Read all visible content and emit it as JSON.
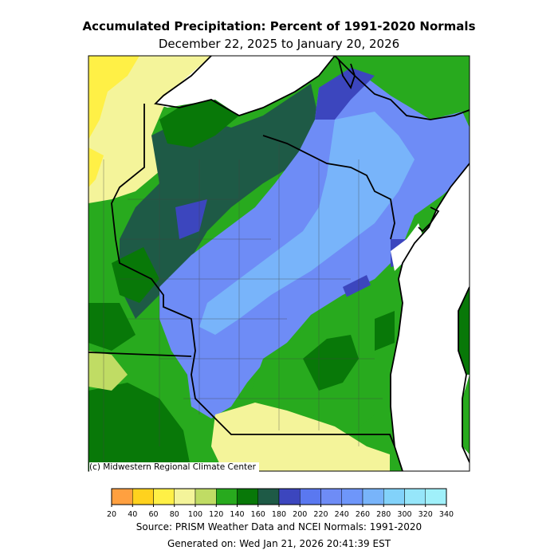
{
  "header": {
    "title": "Accumulated Precipitation: Percent of 1991-2020 Normals",
    "subtitle": "December 22, 2025 to January 20, 2026"
  },
  "credit": "(c) Midwestern Regional Climate Center",
  "footer": {
    "source": "Source: PRISM Weather Data and NCEI Normals: 1991-2020",
    "generated": "Generated on: Wed Jan 21, 2026 20:41:39 EST"
  },
  "legend": {
    "ticks": [
      "20",
      "40",
      "60",
      "80",
      "100",
      "120",
      "140",
      "160",
      "180",
      "200",
      "220",
      "240",
      "260",
      "280",
      "300",
      "320",
      "340"
    ],
    "colors": [
      "#ffa040",
      "#ffd21e",
      "#fff046",
      "#f4f49a",
      "#c0dc64",
      "#28aa1e",
      "#087808",
      "#1e5a46",
      "#3c46be",
      "#5a78f0",
      "#6e8cf6",
      "#6e96fa",
      "#78b4fa",
      "#82d2fa",
      "#96e6fa",
      "#a0f0fa"
    ]
  },
  "map_colors": {
    "lake": "#ffffff",
    "state_border": "#000000",
    "county_border": "#404040"
  }
}
